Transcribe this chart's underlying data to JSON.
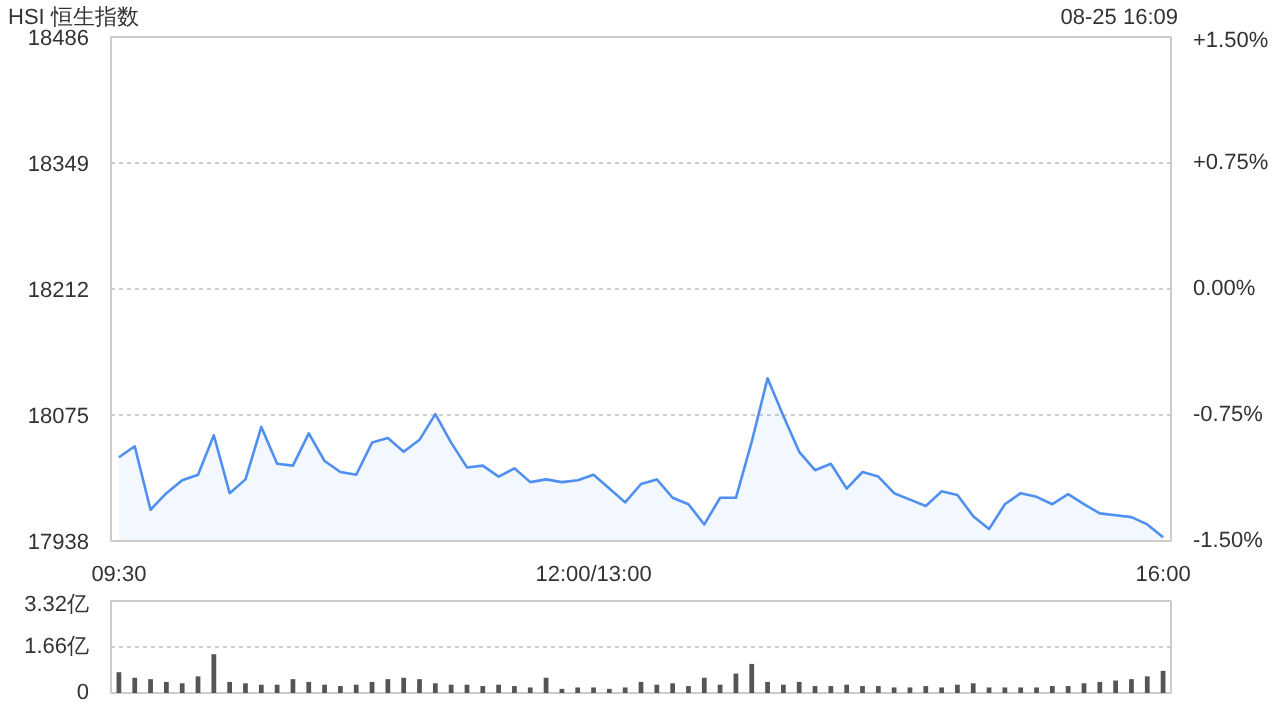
{
  "chart_data": [
    {
      "type": "area",
      "title": "HSI 恒生指数",
      "annotations": [
        "08-25 16:09"
      ],
      "categories": [
        "09:30",
        null,
        null,
        null,
        null,
        null,
        null,
        null,
        null,
        null,
        null,
        null,
        null,
        null,
        null,
        null,
        null,
        null,
        null,
        null,
        null,
        null,
        null,
        null,
        null,
        null,
        null,
        null,
        null,
        null,
        "12:00/13:00",
        null,
        null,
        null,
        null,
        null,
        null,
        null,
        null,
        null,
        null,
        null,
        null,
        null,
        null,
        null,
        null,
        null,
        null,
        null,
        null,
        null,
        null,
        null,
        null,
        null,
        null,
        null,
        null,
        null,
        null,
        null,
        null,
        null,
        null,
        null,
        "16:00"
      ],
      "series": [
        {
          "color": "#4f8ff0",
          "values": [
            18029,
            18041,
            17972,
            17990,
            18004,
            18010,
            18053,
            17990,
            18005,
            18062,
            18022,
            18020,
            18055,
            18025,
            18013,
            18010,
            18045,
            18050,
            18035,
            18048,
            18076,
            18045,
            18018,
            18020,
            18008,
            18017,
            18002,
            18005,
            18002,
            18004,
            18010,
            17995,
            17980,
            18000,
            18005,
            17985,
            17978,
            17956,
            17985,
            17985,
            18046,
            18115,
            18074,
            18035,
            18015,
            18022,
            17995,
            18013,
            18008,
            17990,
            17983,
            17976,
            17992,
            17988,
            17965,
            17951,
            17978,
            17990,
            17986,
            17978,
            17989,
            17978,
            17968,
            17966,
            17964,
            17956,
            17942
          ]
        }
      ],
      "ylim": [
        17938,
        18486
      ],
      "yticks": [
        17938,
        18075,
        18212,
        18349,
        18486
      ],
      "y2lim": [
        -1.5,
        1.5
      ],
      "y2ticks": [
        {
          "value": -1.5,
          "label": "-1.50%"
        },
        {
          "value": -0.75,
          "label": "-0.75%"
        },
        {
          "value": 0,
          "label": "0.00%"
        },
        {
          "value": 0.75,
          "label": "+0.75%"
        },
        {
          "value": 1.5,
          "label": "+1.50%"
        }
      ],
      "grid": "y"
    },
    {
      "type": "bar",
      "categories": [
        null,
        null,
        null,
        null,
        null,
        null,
        null,
        null,
        null,
        null,
        null,
        null,
        null,
        null,
        null,
        null,
        null,
        null,
        null,
        null,
        null,
        null,
        null,
        null,
        null,
        null,
        null,
        null,
        null,
        null,
        null,
        null,
        null,
        null,
        null,
        null,
        null,
        null,
        null,
        null,
        null,
        null,
        null,
        null,
        null,
        null,
        null,
        null,
        null,
        null,
        null,
        null,
        null,
        null,
        null,
        null,
        null,
        null,
        null,
        null,
        null,
        null,
        null,
        null,
        null,
        null,
        null
      ],
      "series": [
        {
          "color": "#555555",
          "values": [
            0.75,
            0.55,
            0.5,
            0.4,
            0.35,
            0.6,
            1.4,
            0.4,
            0.35,
            0.3,
            0.3,
            0.5,
            0.4,
            0.3,
            0.25,
            0.3,
            0.4,
            0.5,
            0.55,
            0.5,
            0.35,
            0.3,
            0.3,
            0.25,
            0.3,
            0.25,
            0.2,
            0.55,
            0.15,
            0.2,
            0.2,
            0.15,
            0.2,
            0.4,
            0.3,
            0.35,
            0.25,
            0.55,
            0.3,
            0.7,
            1.05,
            0.4,
            0.3,
            0.4,
            0.25,
            0.25,
            0.3,
            0.25,
            0.25,
            0.2,
            0.2,
            0.25,
            0.2,
            0.3,
            0.35,
            0.2,
            0.2,
            0.2,
            0.2,
            0.25,
            0.25,
            0.35,
            0.4,
            0.45,
            0.5,
            0.6,
            0.8
          ]
        }
      ],
      "ylim": [
        0,
        3.32
      ],
      "yticks": [
        0,
        {
          "value": 1.66,
          "label": "1.66亿"
        },
        {
          "value": 3.32,
          "label": "3.32亿"
        }
      ],
      "tick_labels": "y",
      "grid": "y"
    }
  ]
}
